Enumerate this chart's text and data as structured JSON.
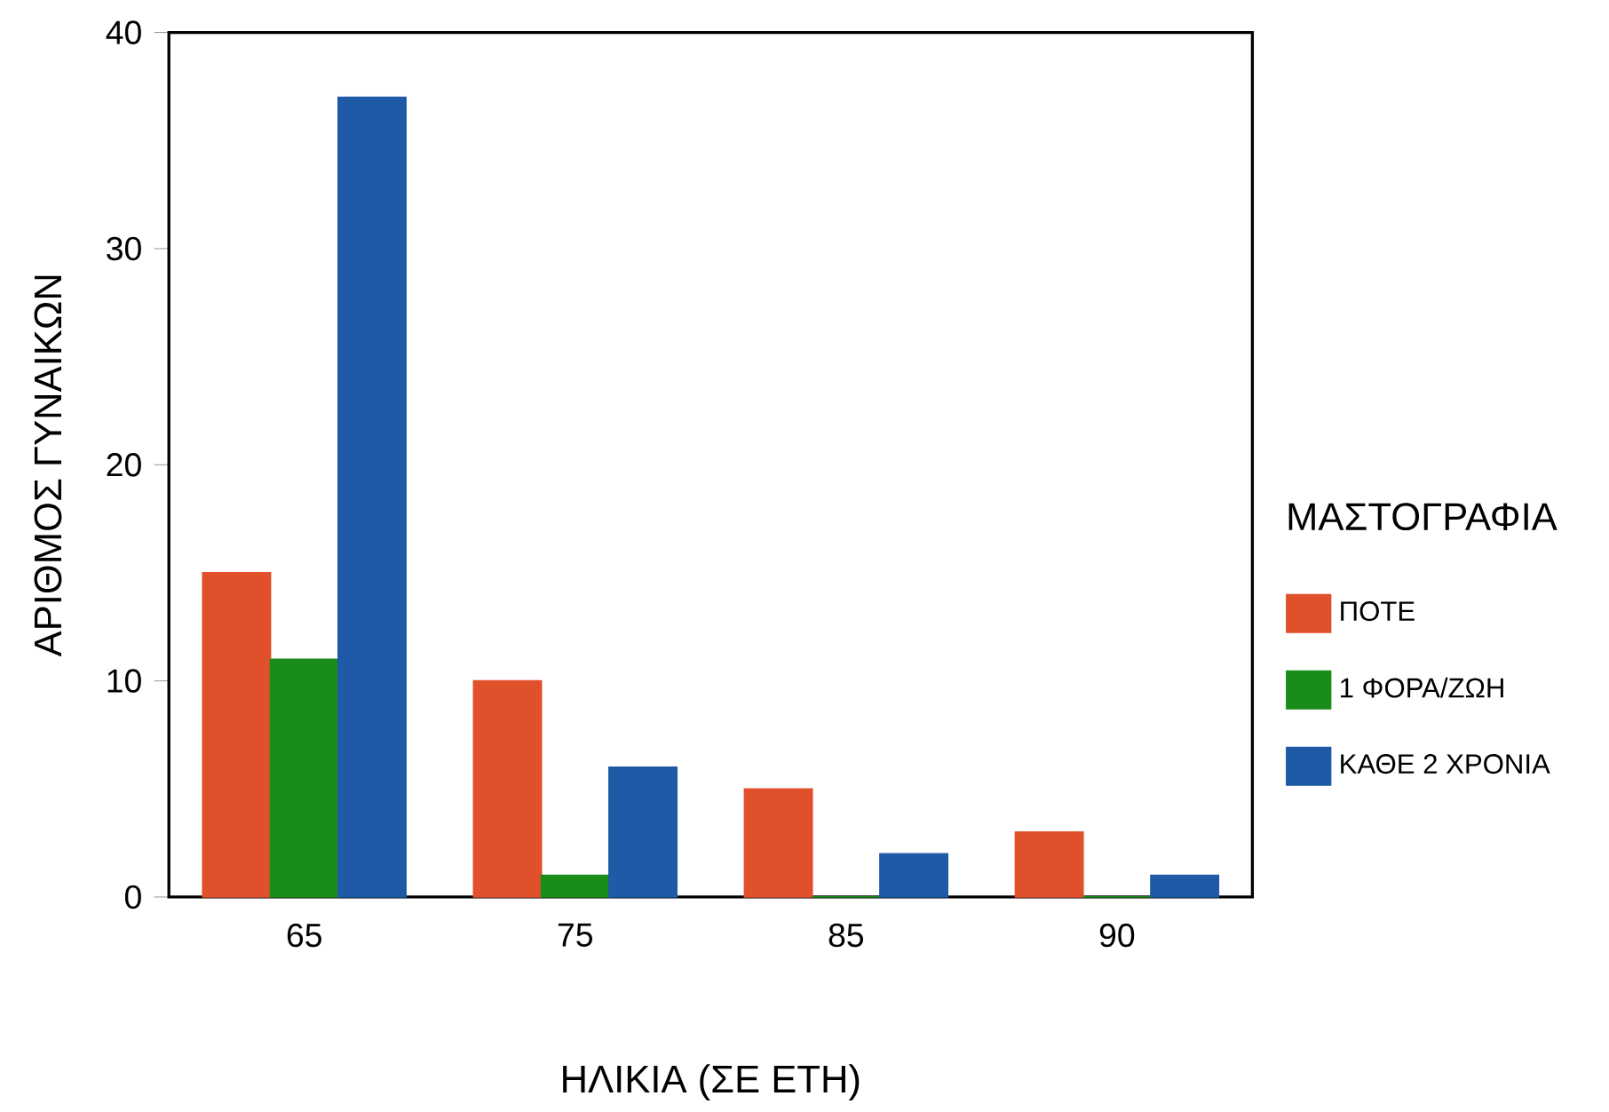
{
  "chart_data": {
    "type": "bar",
    "xlabel": "ΗΛΙΚΙΑ (ΣΕ ΕΤΗ)",
    "ylabel": "ΑΡΙΘΜΟΣ ΓΥΝΑΙΚΩΝ",
    "legend_title": "ΜΑΣΤΟΓΡΑΦΙΑ",
    "legend": "right",
    "categories": [
      "65",
      "75",
      "85",
      "90"
    ],
    "series": [
      {
        "name": "ΠΟΤΕ",
        "color": "#e0502a",
        "values": [
          15,
          10,
          5,
          3
        ]
      },
      {
        "name": "1 ΦΟΡΑ/ΖΩΗ",
        "color": "#1a8c1a",
        "values": [
          11,
          1,
          0,
          0
        ]
      },
      {
        "name": "ΚΑΘΕ 2 ΧΡΟΝΙΑ",
        "color": "#1f5aa6",
        "values": [
          37,
          6,
          2,
          1
        ]
      }
    ],
    "ylim": [
      0,
      40
    ],
    "yticks": [
      0,
      10,
      20,
      30,
      40
    ]
  }
}
